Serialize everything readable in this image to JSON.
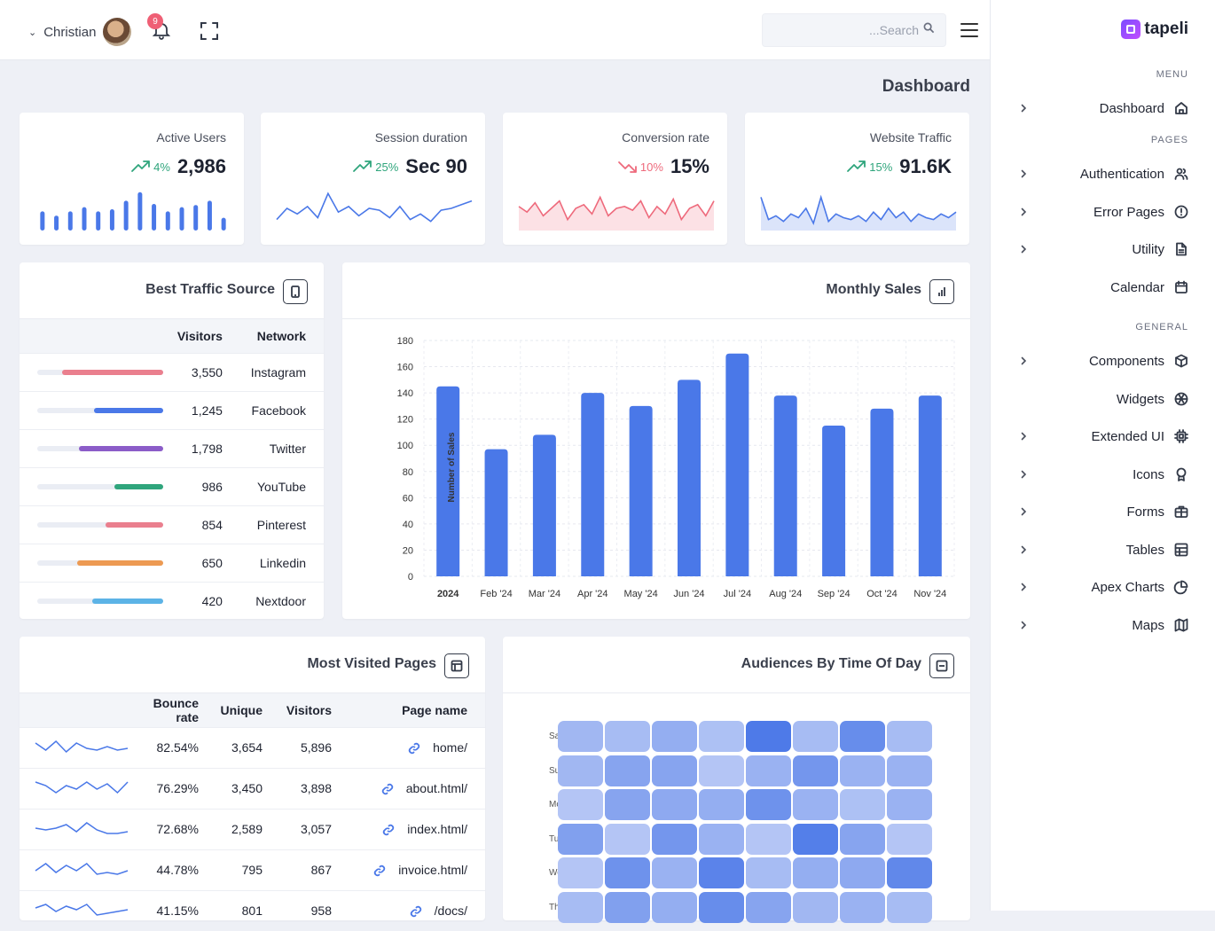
{
  "topbar": {
    "user_name": "Christian",
    "notification_count": "9",
    "search_placeholder": "...Search"
  },
  "page_title": "Dashboard",
  "brand": {
    "name": "tapeli"
  },
  "sidebar": {
    "sections": [
      {
        "label": "MENU",
        "items": [
          {
            "label": "Dashboard",
            "icon": "home-icon",
            "chevron": true
          }
        ]
      },
      {
        "label": "PAGES",
        "items": [
          {
            "label": "Authentication",
            "icon": "users-icon",
            "chevron": true
          },
          {
            "label": "Error Pages",
            "icon": "alert-circle-icon",
            "chevron": true
          },
          {
            "label": "Utility",
            "icon": "file-icon",
            "chevron": true
          },
          {
            "label": "Calendar",
            "icon": "calendar-icon",
            "chevron": false
          }
        ]
      },
      {
        "label": "GENERAL",
        "items": [
          {
            "label": "Components",
            "icon": "box-icon",
            "chevron": true
          },
          {
            "label": "Widgets",
            "icon": "aperture-icon",
            "chevron": false
          },
          {
            "label": "Extended UI",
            "icon": "cpu-icon",
            "chevron": true
          },
          {
            "label": "Icons",
            "icon": "award-icon",
            "chevron": true
          },
          {
            "label": "Forms",
            "icon": "briefcase-icon",
            "chevron": true
          },
          {
            "label": "Tables",
            "icon": "table-icon",
            "chevron": true
          },
          {
            "label": "Apex Charts",
            "icon": "pie-chart-icon",
            "chevron": true
          },
          {
            "label": "Maps",
            "icon": "map-icon",
            "chevron": true
          }
        ]
      }
    ]
  },
  "stats": [
    {
      "title": "Active Users",
      "change": "4%",
      "trend": "up",
      "value": "2,986",
      "chart": "bars",
      "color": "#4a78e8",
      "points": [
        18,
        14,
        18,
        22,
        18,
        20,
        28,
        36,
        25,
        18,
        22,
        24,
        28,
        12
      ]
    },
    {
      "title": "Session duration",
      "change": "25%",
      "trend": "up",
      "value": "Sec 90",
      "chart": "line",
      "color": "#4a78e8",
      "points": [
        8,
        20,
        14,
        22,
        10,
        36,
        16,
        22,
        12,
        20,
        18,
        10,
        22,
        8,
        14,
        6,
        18,
        20,
        24,
        28
      ]
    },
    {
      "title": "Conversion rate",
      "change": "10%",
      "trend": "down",
      "value": "15%",
      "chart": "area",
      "color": "#ee6a7c",
      "points": [
        22,
        16,
        26,
        12,
        20,
        28,
        8,
        20,
        24,
        14,
        32,
        12,
        20,
        22,
        18,
        28,
        10,
        22,
        14,
        30,
        8,
        20,
        24,
        12,
        28
      ]
    },
    {
      "title": "Website Traffic",
      "change": "15%",
      "trend": "up",
      "value": "91.6K",
      "chart": "area",
      "color": "#4a78e8",
      "points": [
        32,
        8,
        12,
        6,
        14,
        10,
        20,
        4,
        32,
        6,
        14,
        10,
        8,
        12,
        6,
        16,
        8,
        20,
        10,
        16,
        6,
        14,
        10,
        8,
        14,
        10,
        16
      ]
    }
  ],
  "traffic": {
    "title": "Best Traffic Source",
    "headers": {
      "visitors": "Visitors",
      "network": "Network"
    },
    "rows": [
      {
        "visitors": "3,550",
        "network": "Instagram",
        "share": 0.8,
        "color": "#ea7f8e"
      },
      {
        "visitors": "1,245",
        "network": "Facebook",
        "share": 0.55,
        "color": "#4a78e8"
      },
      {
        "visitors": "1,798",
        "network": "Twitter",
        "share": 0.67,
        "color": "#8b5cc8"
      },
      {
        "visitors": "986",
        "network": "YouTube",
        "share": 0.39,
        "color": "#2fa57c"
      },
      {
        "visitors": "854",
        "network": "Pinterest",
        "share": 0.46,
        "color": "#ea7f8e"
      },
      {
        "visitors": "650",
        "network": "Linkedin",
        "share": 0.68,
        "color": "#ed9a52"
      },
      {
        "visitors": "420",
        "network": "Nextdoor",
        "share": 0.56,
        "color": "#5cb3e6"
      }
    ]
  },
  "sales": {
    "title": "Monthly Sales",
    "chart_data": {
      "type": "bar",
      "categories": [
        "2024",
        "Feb '24",
        "Mar '24",
        "Apr '24",
        "May '24",
        "Jun '24",
        "Jul '24",
        "Aug '24",
        "Sep '24",
        "Oct '24",
        "Nov '24"
      ],
      "values": [
        145,
        97,
        108,
        140,
        130,
        150,
        170,
        138,
        115,
        128,
        138
      ],
      "ylabel": "Number of Sales",
      "ylim": [
        0,
        180
      ],
      "yticks": [
        "0",
        "20",
        "40",
        "60",
        "80",
        "100",
        "120",
        "140",
        "160",
        "180"
      ],
      "color": "#4a78e8",
      "grid": true
    }
  },
  "visited": {
    "title": "Most Visited Pages",
    "headers": {
      "bounce": "Bounce rate",
      "unique": "Unique",
      "visitors": "Visitors",
      "page": "Page name"
    },
    "rows": [
      {
        "bounce": "82.54%",
        "unique": "3,654",
        "visitors": "5,896",
        "page": "home/",
        "spark": [
          12,
          4,
          14,
          2,
          12,
          6,
          4,
          8,
          4,
          6
        ]
      },
      {
        "bounce": "76.29%",
        "unique": "3,450",
        "visitors": "3,898",
        "page": "about.html/",
        "spark": [
          14,
          10,
          2,
          10,
          6,
          14,
          6,
          12,
          2,
          14
        ]
      },
      {
        "bounce": "72.68%",
        "unique": "2,589",
        "visitors": "3,057",
        "page": "index.html/",
        "spark": [
          8,
          6,
          8,
          12,
          4,
          14,
          6,
          2,
          2,
          4
        ]
      },
      {
        "bounce": "44.78%",
        "unique": "795",
        "visitors": "867",
        "page": "invoice.html/",
        "spark": [
          6,
          14,
          4,
          12,
          6,
          14,
          2,
          4,
          2,
          6
        ]
      },
      {
        "bounce": "41.15%",
        "unique": "801",
        "visitors": "958",
        "page": "/docs/",
        "spark": [
          10,
          14,
          6,
          12,
          8,
          14,
          2,
          4,
          6,
          8
        ]
      }
    ]
  },
  "audience": {
    "title": "Audiences By Time Of Day",
    "row_labels": [
      "Sa",
      "Su",
      "Mo",
      "Tu",
      "We",
      "Th"
    ],
    "chart_data": {
      "type": "heatmap",
      "rows": 6,
      "cols": 8,
      "intensity": [
        [
          0.35,
          0.3,
          0.45,
          0.25,
          1.0,
          0.3,
          0.8,
          0.3
        ],
        [
          0.35,
          0.55,
          0.55,
          0.2,
          0.4,
          0.7,
          0.4,
          0.4
        ],
        [
          0.2,
          0.55,
          0.5,
          0.45,
          0.75,
          0.4,
          0.25,
          0.4
        ],
        [
          0.6,
          0.2,
          0.7,
          0.4,
          0.2,
          0.95,
          0.55,
          0.2
        ],
        [
          0.2,
          0.75,
          0.4,
          0.9,
          0.3,
          0.45,
          0.5,
          0.85
        ],
        [
          0.3,
          0.6,
          0.45,
          0.8,
          0.55,
          0.35,
          0.4,
          0.3
        ]
      ]
    }
  }
}
